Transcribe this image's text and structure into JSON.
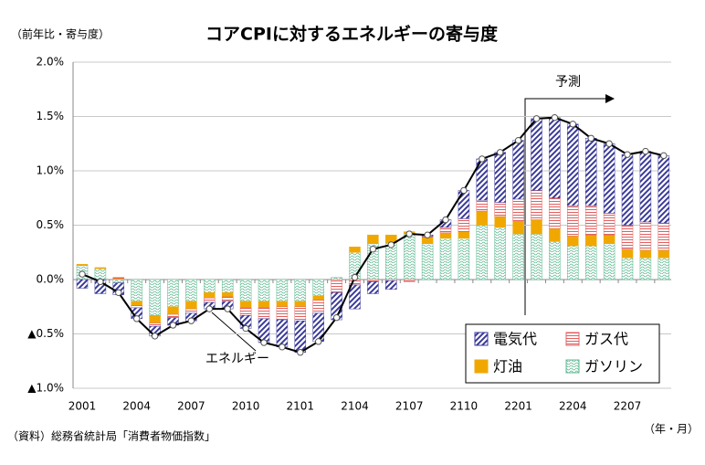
{
  "chart_data": {
    "type": "bar",
    "title": "コアCPIに対するエネルギーの寄与度",
    "y_axis_label": "（前年比・寄与度）",
    "x_axis_label": "（年・月）",
    "source": "（資料）総務省統計局「消費者物価指数」",
    "forecast_label": "予測",
    "categories": [
      "2001",
      null,
      null,
      "2004",
      null,
      null,
      "2007",
      null,
      null,
      "2010",
      null,
      null,
      "2101",
      null,
      null,
      "2104",
      null,
      null,
      "2107",
      null,
      null,
      "2110",
      null,
      null,
      "2201",
      null,
      null,
      "2204",
      null,
      null,
      "2207",
      null,
      null
    ],
    "series": [
      {
        "name": "電気代",
        "color": "#3a3a9a",
        "values": [
          -0.08,
          -0.13,
          -0.11,
          -0.1,
          -0.09,
          -0.07,
          -0.07,
          -0.06,
          -0.07,
          -0.12,
          -0.22,
          -0.25,
          -0.29,
          -0.26,
          -0.25,
          -0.22,
          -0.11,
          -0.08,
          0.0,
          0.01,
          0.07,
          0.26,
          0.38,
          0.46,
          0.54,
          0.66,
          0.74,
          0.75,
          0.62,
          0.64,
          0.65,
          0.65,
          0.62
        ]
      },
      {
        "name": "ガス代",
        "color": "#e06060",
        "values": [
          0.0,
          0.0,
          0.01,
          -0.02,
          -0.03,
          -0.03,
          -0.04,
          -0.04,
          -0.04,
          -0.07,
          -0.1,
          -0.12,
          -0.13,
          -0.12,
          -0.12,
          -0.05,
          -0.02,
          -0.01,
          -0.02,
          0.01,
          0.05,
          0.12,
          0.1,
          0.13,
          0.2,
          0.27,
          0.28,
          0.28,
          0.27,
          0.2,
          0.22,
          0.26,
          0.25
        ]
      },
      {
        "name": "灯油",
        "color": "#f0a800",
        "values": [
          0.01,
          0.01,
          0.01,
          -0.04,
          -0.07,
          -0.07,
          -0.07,
          -0.05,
          -0.04,
          -0.06,
          -0.06,
          -0.05,
          -0.05,
          -0.04,
          0.0,
          0.05,
          0.08,
          0.07,
          0.02,
          0.06,
          0.05,
          0.06,
          0.13,
          0.1,
          0.12,
          0.13,
          0.12,
          0.09,
          0.1,
          0.08,
          0.08,
          0.07,
          0.07
        ]
      },
      {
        "name": "ガソリン",
        "color": "#5cb890",
        "values": [
          0.13,
          0.1,
          -0.03,
          -0.2,
          -0.33,
          -0.25,
          -0.2,
          -0.12,
          -0.12,
          -0.2,
          -0.2,
          -0.2,
          -0.2,
          -0.15,
          0.02,
          0.25,
          0.33,
          0.34,
          0.42,
          0.33,
          0.38,
          0.38,
          0.5,
          0.48,
          0.42,
          0.42,
          0.35,
          0.31,
          0.31,
          0.33,
          0.2,
          0.2,
          0.2
        ]
      },
      {
        "name": "エネルギー",
        "color": "#000000",
        "kind": "line",
        "values": [
          0.05,
          -0.02,
          -0.12,
          -0.36,
          -0.52,
          -0.42,
          -0.38,
          -0.27,
          -0.27,
          -0.45,
          -0.58,
          -0.62,
          -0.67,
          -0.57,
          -0.35,
          0.02,
          0.28,
          0.32,
          0.42,
          0.41,
          0.55,
          0.82,
          1.11,
          1.17,
          1.28,
          1.48,
          1.49,
          1.43,
          1.3,
          1.25,
          1.15,
          1.18,
          1.14
        ]
      }
    ],
    "ylim": [
      -1.0,
      2.0
    ],
    "yticks": [
      {
        "value": 2.0,
        "label": "2.0%"
      },
      {
        "value": 1.5,
        "label": "1.5%"
      },
      {
        "value": 1.0,
        "label": "1.0%"
      },
      {
        "value": 0.5,
        "label": "0.5%"
      },
      {
        "value": 0.0,
        "label": "0.0%"
      },
      {
        "value": -0.5,
        "label": "▲0.5%"
      },
      {
        "value": -1.0,
        "label": "▲1.0%"
      }
    ],
    "grid": true
  }
}
